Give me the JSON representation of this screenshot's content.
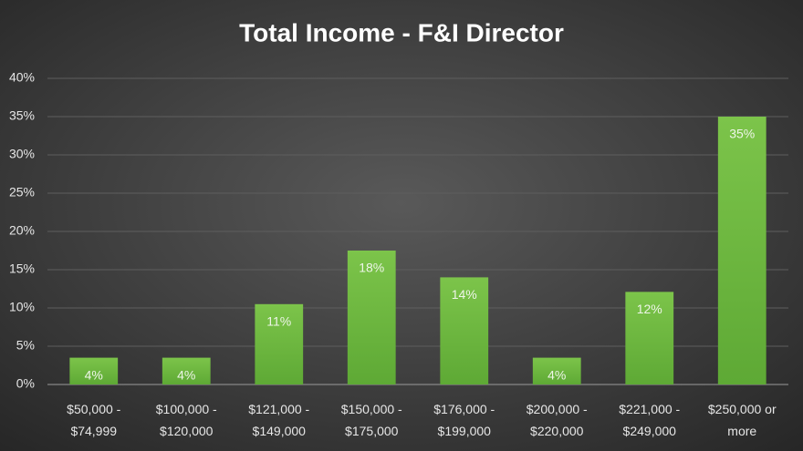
{
  "chart_data": {
    "type": "bar",
    "title": "Total Income - F&I Director",
    "categories": [
      "$50,000 - $74,999",
      "$100,000 - $120,000",
      "$121,000 - $149,000",
      "$150,000 - $175,000",
      "$176,000 - $199,000",
      "$200,000 - $220,000",
      "$221,000 - $249,000",
      "$250,000 or more"
    ],
    "values": [
      3.5,
      3.5,
      10.5,
      17.5,
      14,
      3.5,
      12.1,
      35
    ],
    "value_labels": [
      "4%",
      "4%",
      "11%",
      "18%",
      "14%",
      "4%",
      "12%",
      "35%"
    ],
    "color": "#6cb33f",
    "ylim": [
      0,
      40
    ],
    "yticks": [
      {
        "value": 0,
        "label": "0%"
      },
      {
        "value": 5,
        "label": "5%"
      },
      {
        "value": 10,
        "label": "10%"
      },
      {
        "value": 15,
        "label": "15%"
      },
      {
        "value": 20,
        "label": "20%"
      },
      {
        "value": 25,
        "label": "25%"
      },
      {
        "value": 30,
        "label": "30%"
      },
      {
        "value": 35,
        "label": "35%"
      },
      {
        "value": 40,
        "label": "40%"
      }
    ],
    "grid": true
  }
}
